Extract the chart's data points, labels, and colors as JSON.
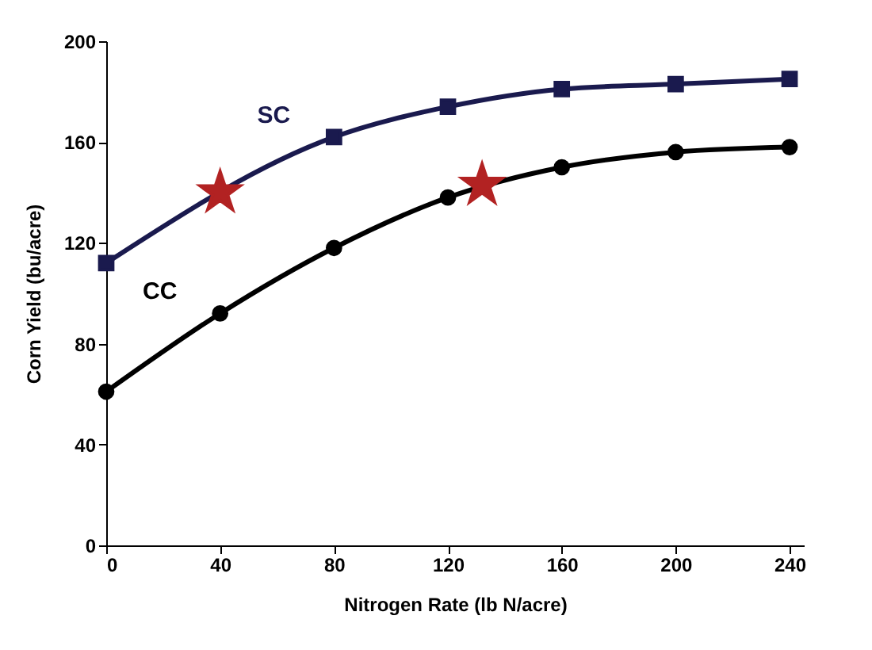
{
  "chart_data": {
    "type": "line",
    "xlabel": "Nitrogen Rate (lb N/acre)",
    "ylabel": "Corn Yield (bu/acre)",
    "series": [
      {
        "name": "SC",
        "color": "#1a1a4e",
        "marker": "square",
        "x": [
          0,
          80,
          120,
          160,
          200,
          240
        ],
        "values": [
          112,
          162,
          174,
          181,
          183,
          185
        ]
      },
      {
        "name": "CC",
        "color": "#000000",
        "marker": "circle",
        "x": [
          0,
          40,
          80,
          120,
          160,
          200,
          240
        ],
        "values": [
          61,
          92,
          118,
          138,
          150,
          156,
          158
        ]
      },
      {
        "type": "scatter",
        "color": "#b22222",
        "marker": "star",
        "x": [
          40,
          132
        ],
        "values": [
          140,
          143
        ]
      }
    ],
    "xlim": [
      0,
      245
    ],
    "xticks": [
      0,
      40,
      80,
      120,
      160,
      200,
      240
    ],
    "ylim": [
      0,
      200
    ],
    "yticks": [
      0,
      40,
      80,
      120,
      160,
      200
    ],
    "grid": false
  }
}
